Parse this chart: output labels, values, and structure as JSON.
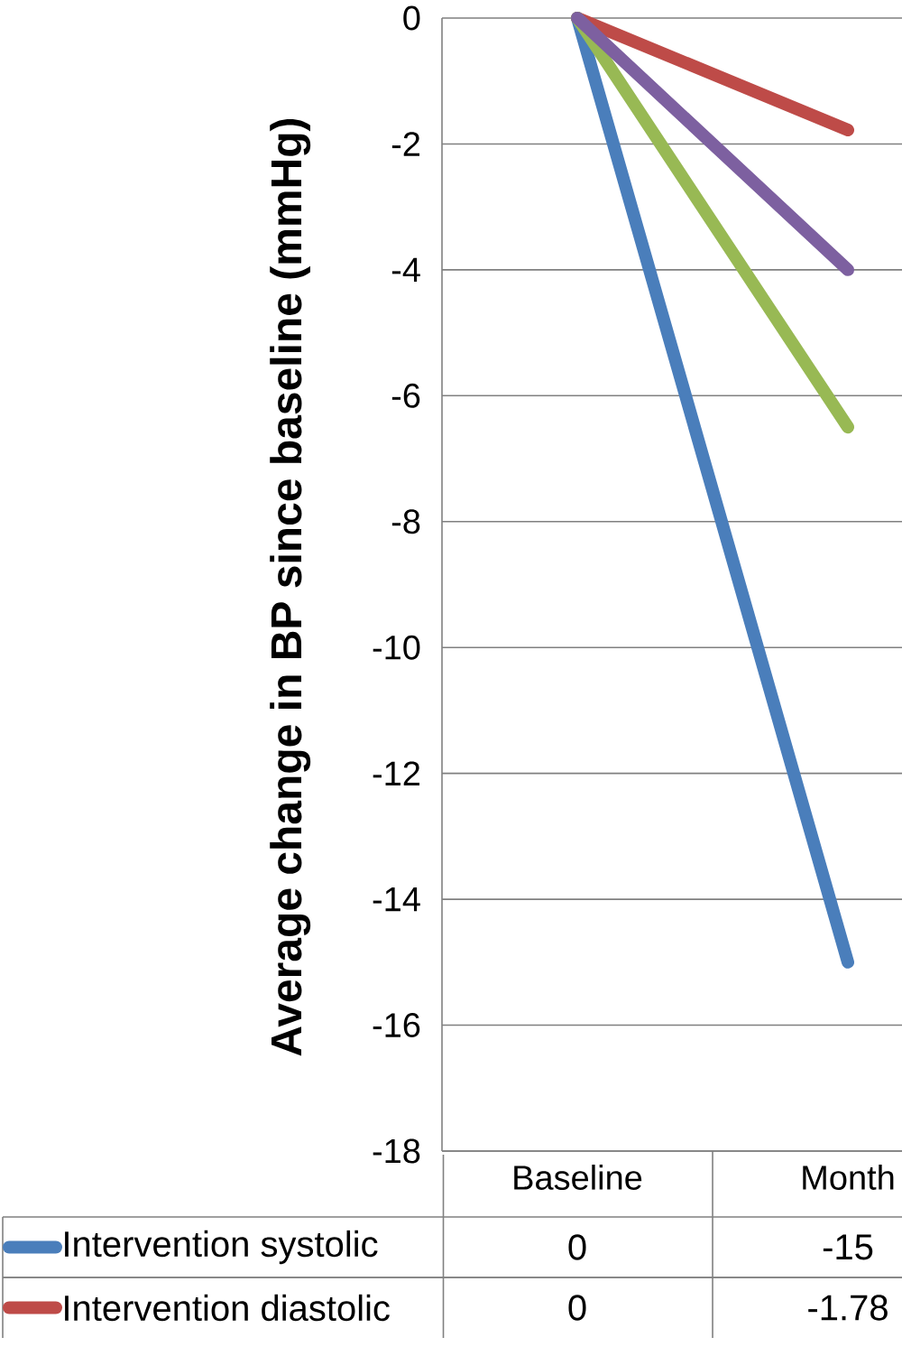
{
  "chart_data": {
    "type": "line",
    "ylabel": "Average change in BP since baseline (mmHg)",
    "categories": [
      "Baseline",
      "Month"
    ],
    "ylim": [
      -18,
      0
    ],
    "yticks": [
      0,
      -2,
      -4,
      -6,
      -8,
      -10,
      -12,
      -14,
      -16,
      -18
    ],
    "grid": "y",
    "legend": "bottom",
    "series": [
      {
        "name": "Intervention systolic",
        "color": "#4a7ebb",
        "values": [
          0,
          -15
        ],
        "value_labels": [
          "0",
          "-15"
        ]
      },
      {
        "name": "Intervention diastolic",
        "color": "#be4b48",
        "values": [
          0,
          -1.78
        ],
        "value_labels": [
          "0",
          "-1.78"
        ]
      },
      {
        "color": "#98b954",
        "values": [
          0,
          -6.5
        ]
      },
      {
        "color": "#7d60a0",
        "values": [
          0,
          -4
        ]
      }
    ]
  }
}
